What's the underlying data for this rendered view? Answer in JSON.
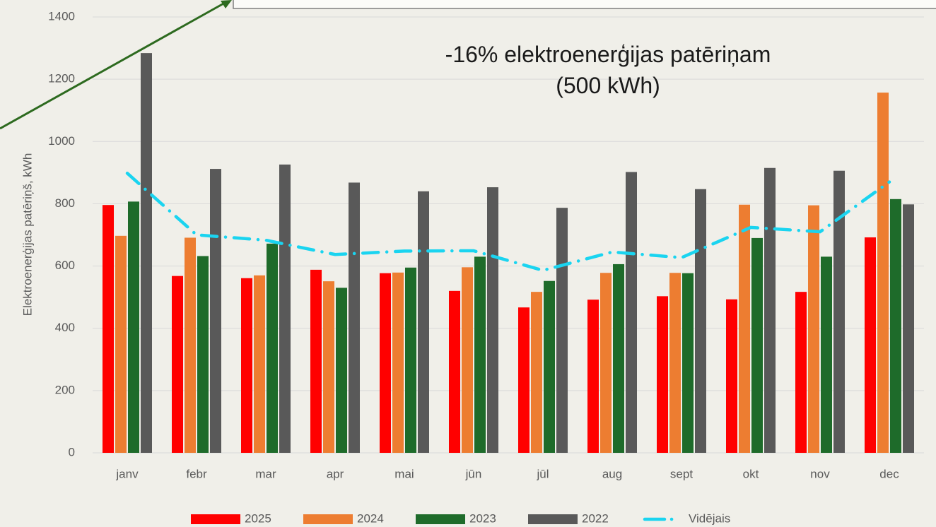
{
  "chart_data": {
    "type": "bar",
    "annotation": "-16% elektroenerģijas patēriņam (500 kWh)",
    "y_label": "Elektroenerģijas patēriņš, kWh",
    "categories": [
      "janv",
      "febr",
      "mar",
      "apr",
      "mai",
      "jūn",
      "jūl",
      "aug",
      "sept",
      "okt",
      "nov",
      "dec"
    ],
    "series": [
      {
        "name": "2025",
        "color": "#ff0000",
        "values": [
          796,
          568,
          561,
          588,
          577,
          520,
          467,
          492,
          503,
          493,
          517,
          692
        ]
      },
      {
        "name": "2024",
        "color": "#ed7d31",
        "values": [
          697,
          691,
          570,
          551,
          579,
          596,
          517,
          578,
          578,
          797,
          795,
          1157
        ]
      },
      {
        "name": "2023",
        "color": "#1e6b2a",
        "values": [
          807,
          632,
          672,
          530,
          595,
          630,
          552,
          606,
          577,
          690,
          630,
          815
        ]
      },
      {
        "name": "2022",
        "color": "#595959",
        "values": [
          1284,
          912,
          926,
          868,
          840,
          853,
          787,
          902,
          847,
          915,
          906,
          798
        ]
      },
      {
        "name": "Vidējais",
        "type": "line",
        "color": "#1ad4f0",
        "values": [
          898,
          700,
          683,
          637,
          648,
          649,
          586,
          645,
          627,
          724,
          710,
          870
        ]
      }
    ],
    "ylim": [
      0,
      1400
    ],
    "yticks": [
      0,
      200,
      400,
      600,
      800,
      1000,
      1200,
      1400
    ],
    "grid": true
  }
}
